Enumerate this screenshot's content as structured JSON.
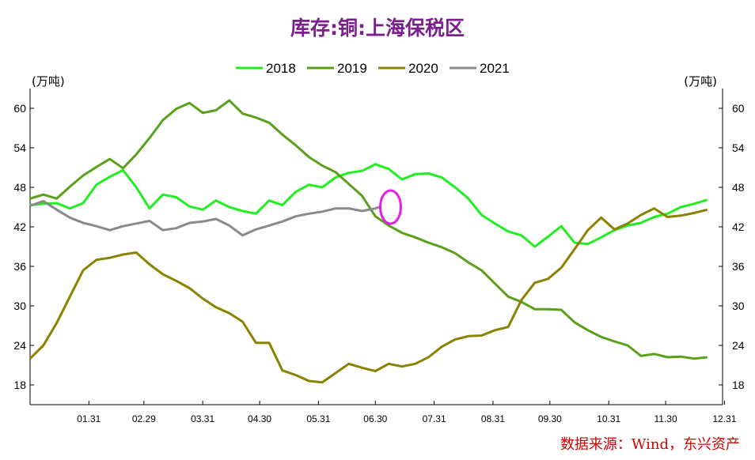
{
  "chart_data": {
    "type": "line",
    "title": "库存:铜:上海保税区",
    "unit_left": "(万吨)",
    "unit_right": "(万吨)",
    "source": "数据来源：Wind，东兴资产",
    "x_ticks": [
      "01.31",
      "02.29",
      "03.31",
      "04.30",
      "05.31",
      "06.30",
      "07.31",
      "08.31",
      "09.30",
      "10.31",
      "11.30",
      "12.31"
    ],
    "xlim": [
      0,
      365
    ],
    "ylim": [
      15,
      63
    ],
    "y_ticks": [
      "60",
      "54",
      "48",
      "42",
      "36",
      "30",
      "24",
      "18"
    ],
    "grid": false,
    "legend_position": "top",
    "series": [
      {
        "name": "2018",
        "color": "#22ee22",
        "points": [
          [
            0,
            45.3
          ],
          [
            7,
            45.5
          ],
          [
            14,
            45.6
          ],
          [
            21,
            44.8
          ],
          [
            28,
            45.6
          ],
          [
            35,
            48.4
          ],
          [
            42,
            49.6
          ],
          [
            49,
            50.6
          ],
          [
            56,
            48.0
          ],
          [
            63,
            44.8
          ],
          [
            70,
            46.9
          ],
          [
            77,
            46.5
          ],
          [
            84,
            45.1
          ],
          [
            91,
            44.6
          ],
          [
            98,
            46.0
          ],
          [
            105,
            45.0
          ],
          [
            112,
            44.4
          ],
          [
            119,
            44.0
          ],
          [
            126,
            46.0
          ],
          [
            133,
            45.3
          ],
          [
            140,
            47.3
          ],
          [
            147,
            48.4
          ],
          [
            154,
            48.0
          ],
          [
            161,
            49.5
          ],
          [
            168,
            50.2
          ],
          [
            175,
            50.5
          ],
          [
            182,
            51.5
          ],
          [
            189,
            50.8
          ],
          [
            196,
            49.2
          ],
          [
            203,
            50.0
          ],
          [
            210,
            50.1
          ],
          [
            217,
            49.5
          ],
          [
            224,
            48.0
          ],
          [
            231,
            46.3
          ],
          [
            238,
            43.8
          ],
          [
            245,
            42.5
          ],
          [
            252,
            41.3
          ],
          [
            259,
            40.7
          ],
          [
            266,
            39.0
          ],
          [
            273,
            40.5
          ],
          [
            280,
            42.1
          ],
          [
            287,
            39.6
          ],
          [
            294,
            39.4
          ],
          [
            301,
            40.4
          ],
          [
            308,
            41.5
          ],
          [
            315,
            42.2
          ],
          [
            322,
            42.6
          ],
          [
            329,
            43.5
          ],
          [
            336,
            44.0
          ],
          [
            343,
            45.0
          ],
          [
            350,
            45.5
          ],
          [
            357,
            46.1
          ]
        ]
      },
      {
        "name": "2019",
        "color": "#5aa01a",
        "points": [
          [
            0,
            46.3
          ],
          [
            7,
            46.9
          ],
          [
            14,
            46.3
          ],
          [
            21,
            48.1
          ],
          [
            28,
            49.8
          ],
          [
            35,
            51.1
          ],
          [
            42,
            52.3
          ],
          [
            49,
            50.9
          ],
          [
            56,
            53.0
          ],
          [
            63,
            55.5
          ],
          [
            70,
            58.2
          ],
          [
            77,
            59.9
          ],
          [
            84,
            60.8
          ],
          [
            91,
            59.3
          ],
          [
            98,
            59.7
          ],
          [
            105,
            61.2
          ],
          [
            112,
            59.2
          ],
          [
            119,
            58.6
          ],
          [
            126,
            57.8
          ],
          [
            133,
            56.0
          ],
          [
            140,
            54.4
          ],
          [
            147,
            52.6
          ],
          [
            154,
            51.3
          ],
          [
            161,
            50.3
          ],
          [
            168,
            48.5
          ],
          [
            175,
            46.7
          ],
          [
            182,
            43.6
          ],
          [
            189,
            42.2
          ],
          [
            196,
            41.1
          ],
          [
            203,
            40.4
          ],
          [
            210,
            39.6
          ],
          [
            217,
            38.9
          ],
          [
            224,
            38.0
          ],
          [
            231,
            36.6
          ],
          [
            238,
            35.4
          ],
          [
            245,
            33.4
          ],
          [
            252,
            31.4
          ],
          [
            259,
            30.6
          ],
          [
            266,
            29.5
          ],
          [
            273,
            29.5
          ],
          [
            280,
            29.4
          ],
          [
            287,
            27.5
          ],
          [
            294,
            26.3
          ],
          [
            301,
            25.3
          ],
          [
            308,
            24.6
          ],
          [
            315,
            24.0
          ],
          [
            322,
            22.4
          ],
          [
            329,
            22.7
          ],
          [
            336,
            22.2
          ],
          [
            343,
            22.3
          ],
          [
            350,
            22.0
          ],
          [
            357,
            22.2
          ]
        ]
      },
      {
        "name": "2020",
        "color": "#8a8200",
        "points": [
          [
            0,
            22.0
          ],
          [
            7,
            24.0
          ],
          [
            14,
            27.4
          ],
          [
            21,
            31.4
          ],
          [
            28,
            35.4
          ],
          [
            35,
            37.0
          ],
          [
            42,
            37.3
          ],
          [
            49,
            37.8
          ],
          [
            56,
            38.1
          ],
          [
            63,
            36.3
          ],
          [
            70,
            34.8
          ],
          [
            77,
            33.8
          ],
          [
            84,
            32.7
          ],
          [
            91,
            31.1
          ],
          [
            98,
            29.8
          ],
          [
            105,
            28.9
          ],
          [
            112,
            27.6
          ],
          [
            119,
            24.4
          ],
          [
            126,
            24.4
          ],
          [
            133,
            20.2
          ],
          [
            140,
            19.5
          ],
          [
            147,
            18.6
          ],
          [
            154,
            18.4
          ],
          [
            161,
            19.8
          ],
          [
            168,
            21.2
          ],
          [
            175,
            20.6
          ],
          [
            182,
            20.1
          ],
          [
            189,
            21.2
          ],
          [
            196,
            20.8
          ],
          [
            203,
            21.2
          ],
          [
            210,
            22.2
          ],
          [
            217,
            23.8
          ],
          [
            224,
            24.9
          ],
          [
            231,
            25.4
          ],
          [
            238,
            25.5
          ],
          [
            245,
            26.3
          ],
          [
            252,
            26.8
          ],
          [
            259,
            30.9
          ],
          [
            266,
            33.5
          ],
          [
            273,
            34.1
          ],
          [
            280,
            35.8
          ],
          [
            287,
            38.6
          ],
          [
            294,
            41.5
          ],
          [
            301,
            43.4
          ],
          [
            308,
            41.6
          ],
          [
            315,
            42.5
          ],
          [
            322,
            43.8
          ],
          [
            329,
            44.8
          ],
          [
            336,
            43.5
          ],
          [
            343,
            43.7
          ],
          [
            350,
            44.1
          ],
          [
            357,
            44.6
          ]
        ]
      },
      {
        "name": "2021",
        "color": "#8a8a8a",
        "points": [
          [
            0,
            45.2
          ],
          [
            7,
            45.9
          ],
          [
            14,
            44.6
          ],
          [
            21,
            43.4
          ],
          [
            28,
            42.6
          ],
          [
            35,
            42.1
          ],
          [
            42,
            41.5
          ],
          [
            49,
            42.1
          ],
          [
            56,
            42.5
          ],
          [
            63,
            42.9
          ],
          [
            70,
            41.5
          ],
          [
            77,
            41.8
          ],
          [
            84,
            42.6
          ],
          [
            91,
            42.8
          ],
          [
            98,
            43.2
          ],
          [
            105,
            42.2
          ],
          [
            112,
            40.7
          ],
          [
            119,
            41.6
          ],
          [
            126,
            42.2
          ],
          [
            133,
            42.8
          ],
          [
            140,
            43.6
          ],
          [
            147,
            44.0
          ],
          [
            154,
            44.3
          ],
          [
            161,
            44.8
          ],
          [
            168,
            44.8
          ],
          [
            175,
            44.4
          ],
          [
            182,
            44.8
          ],
          [
            185,
            45.1
          ]
        ]
      }
    ],
    "annotation": {
      "shape": "ellipse",
      "color": "#e81ee8",
      "x": 190,
      "y": 45
    }
  }
}
